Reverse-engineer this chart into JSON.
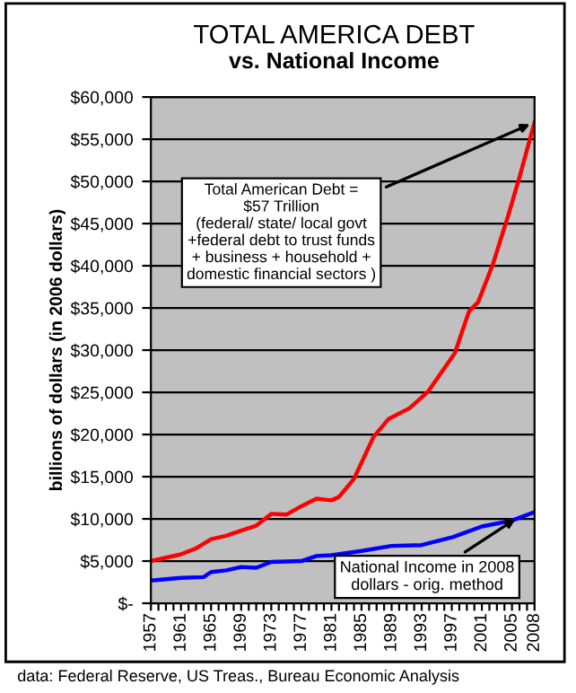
{
  "chart_data": {
    "type": "line",
    "title": "TOTAL AMERICA DEBT",
    "subtitle": "vs. National Income",
    "ylabel": "billions of dollars (in 2006 dollars)",
    "series": [
      {
        "color": "#ff0000",
        "x": [
          1957,
          1959,
          1961,
          1963,
          1965,
          1967,
          1969,
          1971,
          1973,
          1975,
          1977,
          1979,
          1981,
          1982,
          1984,
          1986.6,
          1988.6,
          1991.4,
          1993.8,
          1997.4,
          1999.3,
          2000.5,
          2002.5,
          2004.5,
          2006,
          2008
        ],
        "values": [
          5000,
          5400,
          5800,
          6500,
          7600,
          8000,
          8600,
          9200,
          10600,
          10500,
          11500,
          12400,
          12200,
          12600,
          14750,
          19730,
          21850,
          23130,
          25040,
          29640,
          34620,
          35690,
          40280,
          45960,
          50500,
          57000
        ]
      },
      {
        "color": "#0000ff",
        "x": [
          1957,
          1961,
          1964,
          1965,
          1967,
          1969,
          1971,
          1973,
          1977,
          1979,
          1981,
          1985,
          1989,
          1993,
          1997,
          2001,
          2005,
          2008
        ],
        "values": [
          2700,
          3000,
          3100,
          3700,
          3900,
          4300,
          4200,
          4900,
          5000,
          5600,
          5700,
          6200,
          6800,
          6900,
          7800,
          9100,
          9800,
          10800
        ]
      }
    ],
    "xlim": [
      1957,
      2008
    ],
    "xticks": [
      1957,
      {
        "value": 1958,
        "label": null
      },
      {
        "value": 1959,
        "label": null
      },
      {
        "value": 1960,
        "label": null
      },
      1961,
      {
        "value": 1962,
        "label": null
      },
      {
        "value": 1963,
        "label": null
      },
      {
        "value": 1964,
        "label": null
      },
      1965,
      {
        "value": 1966,
        "label": null
      },
      {
        "value": 1967,
        "label": null
      },
      {
        "value": 1968,
        "label": null
      },
      1969,
      {
        "value": 1970,
        "label": null
      },
      {
        "value": 1971,
        "label": null
      },
      {
        "value": 1972,
        "label": null
      },
      1973,
      {
        "value": 1974,
        "label": null
      },
      {
        "value": 1975,
        "label": null
      },
      {
        "value": 1976,
        "label": null
      },
      1977,
      {
        "value": 1978,
        "label": null
      },
      {
        "value": 1979,
        "label": null
      },
      {
        "value": 1980,
        "label": null
      },
      1981,
      {
        "value": 1982,
        "label": null
      },
      {
        "value": 1983,
        "label": null
      },
      {
        "value": 1984,
        "label": null
      },
      1985,
      {
        "value": 1986,
        "label": null
      },
      {
        "value": 1987,
        "label": null
      },
      {
        "value": 1988,
        "label": null
      },
      1989,
      {
        "value": 1990,
        "label": null
      },
      {
        "value": 1991,
        "label": null
      },
      {
        "value": 1992,
        "label": null
      },
      1993,
      {
        "value": 1994,
        "label": null
      },
      {
        "value": 1995,
        "label": null
      },
      {
        "value": 1996,
        "label": null
      },
      1997,
      {
        "value": 1998,
        "label": null
      },
      {
        "value": 1999,
        "label": null
      },
      {
        "value": 2000,
        "label": null
      },
      2001,
      {
        "value": 2002,
        "label": null
      },
      {
        "value": 2003,
        "label": null
      },
      {
        "value": 2004,
        "label": null
      },
      2005,
      {
        "value": 2006,
        "label": null
      },
      {
        "value": 2007,
        "label": null
      },
      2008
    ],
    "ylim": [
      0,
      60000
    ],
    "yticks": [
      {
        "value": 0,
        "label": "$-"
      },
      {
        "value": 5000,
        "label": "$5,000"
      },
      {
        "value": 10000,
        "label": "$10,000"
      },
      {
        "value": 15000,
        "label": "$15,000"
      },
      {
        "value": 20000,
        "label": "$20,000"
      },
      {
        "value": 25000,
        "label": "$25,000"
      },
      {
        "value": 30000,
        "label": "$30,000"
      },
      {
        "value": 35000,
        "label": "$35,000"
      },
      {
        "value": 40000,
        "label": "$40,000"
      },
      {
        "value": 45000,
        "label": "$45,000"
      },
      {
        "value": 50000,
        "label": "$50,000"
      },
      {
        "value": 55000,
        "label": "$55,000"
      },
      {
        "value": 60000,
        "label": "$60,000"
      }
    ],
    "grid": "y",
    "annotations": [
      {
        "text": "Total American Debt =\n$57 Trillion\n(federal/ state/ local govt\n+federal debt to trust funds\n+ business + household +\ndomestic financial sectors )",
        "x": 2008,
        "y": 57000
      },
      {
        "text": "National Income in 2008\ndollars - orig. method",
        "x": 2006,
        "y": 10300
      },
      "data: Federal Reserve, US Treas., Bureau Economic Analysis"
    ]
  }
}
